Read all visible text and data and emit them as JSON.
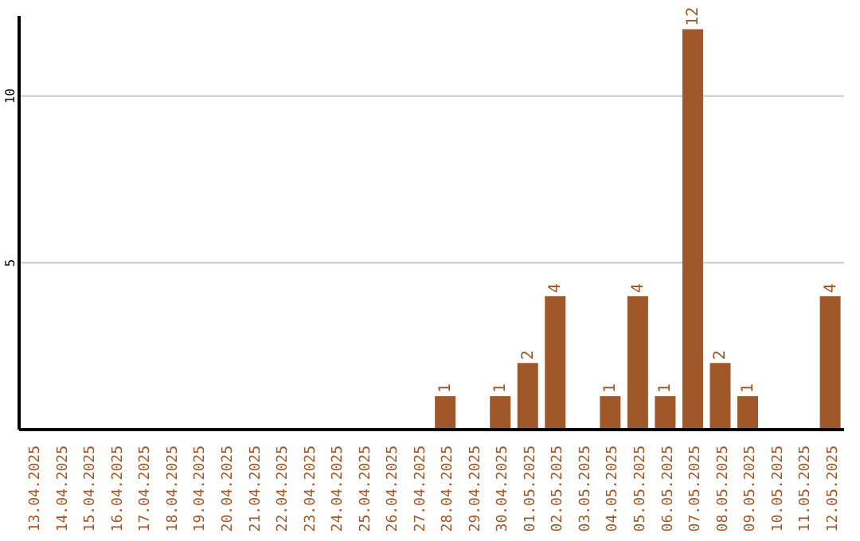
{
  "chart_data": {
    "type": "bar",
    "categories": [
      "13.04.2025",
      "14.04.2025",
      "15.04.2025",
      "16.04.2025",
      "17.04.2025",
      "18.04.2025",
      "19.04.2025",
      "20.04.2025",
      "21.04.2025",
      "22.04.2025",
      "23.04.2025",
      "24.04.2025",
      "25.04.2025",
      "26.04.2025",
      "27.04.2025",
      "28.04.2025",
      "29.04.2025",
      "30.04.2025",
      "01.05.2025",
      "02.05.2025",
      "03.05.2025",
      "04.05.2025",
      "05.05.2025",
      "06.05.2025",
      "07.05.2025",
      "08.05.2025",
      "09.05.2025",
      "10.05.2025",
      "11.05.2025",
      "12.05.2025"
    ],
    "values": [
      0,
      0,
      0,
      0,
      0,
      0,
      0,
      0,
      0,
      0,
      0,
      0,
      0,
      0,
      0,
      1,
      0,
      1,
      2,
      4,
      0,
      1,
      4,
      1,
      12,
      2,
      1,
      0,
      0,
      4
    ],
    "value_labels": [
      null,
      null,
      null,
      null,
      null,
      null,
      null,
      null,
      null,
      null,
      null,
      null,
      null,
      null,
      null,
      "1",
      null,
      "1",
      "2",
      "4",
      null,
      "1",
      "4",
      "1",
      "12",
      "2",
      "1",
      null,
      null,
      "4"
    ],
    "color": "#a0582a",
    "ylim": [
      0,
      12.4
    ],
    "yticks": [
      5,
      10
    ],
    "grid": "y"
  }
}
